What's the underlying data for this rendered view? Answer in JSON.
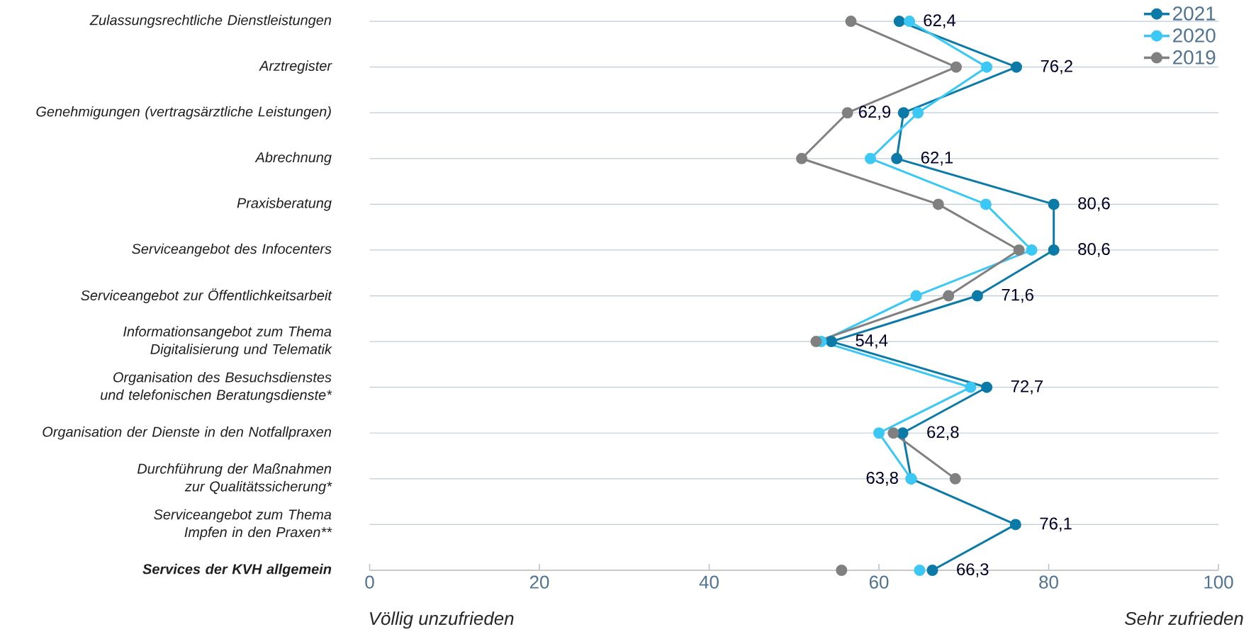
{
  "chart_data": {
    "type": "line",
    "orientation": "horizontal",
    "categories": [
      "Zulassungsrechtliche Dienstleistungen",
      "Arztregister",
      "Genehmigungen (vertragsärztliche Leistungen)",
      "Abrechnung",
      "Praxisberatung",
      "Serviceangebot des Infocenters",
      "Serviceangebot zur Öffentlichkeitsarbeit",
      "Informationsangebot zum Thema Digitalisierung und Telematik",
      "Organisation des Besuchsdienstes und telefonischen Beratungsdienste*",
      "Organisation der Dienste in den Notfallpraxen",
      "Durchführung der Maßnahmen zur Qualitätssicherung*",
      "Serviceangebot zum Thema Impfen in den Praxen**",
      "Services der KVH allgemein"
    ],
    "series": [
      {
        "name": "2021",
        "color": "#0b7aa6",
        "values": [
          62.4,
          76.2,
          62.9,
          62.1,
          80.6,
          80.6,
          71.6,
          54.4,
          72.7,
          62.8,
          63.8,
          76.1,
          66.3
        ],
        "value_labels": [
          "62,4",
          "76,2",
          "62,9",
          "62,1",
          "80,6",
          "80,6",
          "71,6",
          "54,4",
          "72,7",
          "62,8",
          "63,8",
          "76,1",
          "66,3"
        ]
      },
      {
        "name": "2020",
        "color": "#3cc8f5",
        "values": [
          63.6,
          72.7,
          64.6,
          59.0,
          72.6,
          78.0,
          64.4,
          53.2,
          70.8,
          60.0,
          63.8,
          null,
          64.8
        ]
      },
      {
        "name": "2019",
        "color": "#808080",
        "values": [
          56.7,
          69.1,
          56.3,
          50.9,
          67.0,
          76.5,
          68.2,
          52.6,
          null,
          61.7,
          69.0,
          null,
          55.6
        ]
      }
    ],
    "xlim": [
      0,
      100
    ],
    "xticks": [
      0,
      20,
      40,
      60,
      80,
      100
    ],
    "grid": "y",
    "legend": "top right",
    "marker": "circle",
    "line_style": "solid",
    "annotations": [
      "Völlig unzufrieden",
      "Sehr zufrieden"
    ]
  }
}
